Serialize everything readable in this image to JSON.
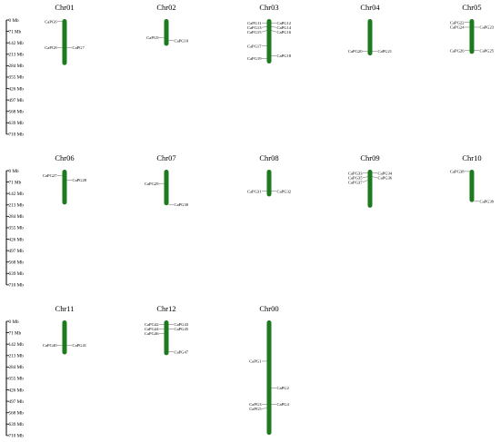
{
  "scale": {
    "unit": "Mb",
    "ticks": [
      0,
      71,
      142,
      213,
      284,
      355,
      426,
      497,
      568,
      639,
      710
    ],
    "tick_labels": [
      "0 Mb",
      "71 Mb",
      "142 Mb",
      "213 Mb",
      "284 Mb",
      "355 Mb",
      "426 Mb",
      "497 Mb",
      "568 Mb",
      "639 Mb",
      "710 Mb"
    ]
  },
  "colors": {
    "chromosome": "#1e7a1e",
    "axis": "#000000",
    "leader": "#666666"
  },
  "chromosomes": [
    {
      "name": "Chr01",
      "length": 275,
      "genes": [
        {
          "name": "CaPG6",
          "pos": 10,
          "side": "left"
        },
        {
          "name": "CaPG7",
          "pos": 172,
          "side": "right"
        },
        {
          "name": "CaPG8",
          "pos": 172,
          "side": "left"
        }
      ]
    },
    {
      "name": "Chr02",
      "length": 155,
      "genes": [
        {
          "name": "CaPG9",
          "pos": 110,
          "side": "left"
        },
        {
          "name": "CaPG10",
          "pos": 128,
          "side": "right"
        }
      ]
    },
    {
      "name": "Chr03",
      "length": 265,
      "genes": [
        {
          "name": "CaPG11",
          "pos": 18,
          "side": "left"
        },
        {
          "name": "CaPG12",
          "pos": 18,
          "side": "right"
        },
        {
          "name": "CaPG13",
          "pos": 42,
          "side": "left"
        },
        {
          "name": "CaPG14",
          "pos": 42,
          "side": "right"
        },
        {
          "name": "CaPG15",
          "pos": 65,
          "side": "left"
        },
        {
          "name": "CaPG16",
          "pos": 65,
          "side": "right"
        },
        {
          "name": "CaPG17",
          "pos": 162,
          "side": "left"
        },
        {
          "name": "CaPG18",
          "pos": 222,
          "side": "right"
        },
        {
          "name": "CaPG19",
          "pos": 240,
          "side": "left"
        }
      ]
    },
    {
      "name": "Chr04",
      "length": 215,
      "genes": [
        {
          "name": "CaPG20",
          "pos": 195,
          "side": "left"
        },
        {
          "name": "CaPG21",
          "pos": 195,
          "side": "right"
        }
      ]
    },
    {
      "name": "Chr05",
      "length": 205,
      "genes": [
        {
          "name": "CaPG22",
          "pos": 15,
          "side": "left"
        },
        {
          "name": "CaPG23",
          "pos": 45,
          "side": "right"
        },
        {
          "name": "CaPG24",
          "pos": 45,
          "side": "left"
        },
        {
          "name": "CaPG25",
          "pos": 190,
          "side": "right"
        },
        {
          "name": "CaPG26",
          "pos": 190,
          "side": "left"
        }
      ]
    },
    {
      "name": "Chr06",
      "length": 205,
      "genes": [
        {
          "name": "CaPG27",
          "pos": 30,
          "side": "left"
        },
        {
          "name": "CaPG28",
          "pos": 58,
          "side": "right"
        }
      ]
    },
    {
      "name": "Chr07",
      "length": 210,
      "genes": [
        {
          "name": "CaPG29",
          "pos": 80,
          "side": "left"
        },
        {
          "name": "CaPG30",
          "pos": 210,
          "side": "right"
        }
      ]
    },
    {
      "name": "Chr08",
      "length": 155,
      "genes": [
        {
          "name": "CaPG31",
          "pos": 128,
          "side": "left"
        },
        {
          "name": "CaPG32",
          "pos": 128,
          "side": "right"
        }
      ]
    },
    {
      "name": "Chr09",
      "length": 225,
      "genes": [
        {
          "name": "CaPG33",
          "pos": 15,
          "side": "left"
        },
        {
          "name": "CaPG34",
          "pos": 15,
          "side": "right"
        },
        {
          "name": "CaPG35",
          "pos": 38,
          "side": "left"
        },
        {
          "name": "CaPG36",
          "pos": 38,
          "side": "right"
        },
        {
          "name": "CaPG37",
          "pos": 60,
          "side": "left"
        }
      ]
    },
    {
      "name": "Chr10",
      "length": 190,
      "genes": [
        {
          "name": "CaPG38",
          "pos": 5,
          "side": "left"
        },
        {
          "name": "CaPG39",
          "pos": 190,
          "side": "right"
        }
      ]
    },
    {
      "name": "Chr11",
      "length": 200,
      "genes": [
        {
          "name": "CaPG40",
          "pos": 150,
          "side": "left"
        },
        {
          "name": "CaPG41",
          "pos": 150,
          "side": "right"
        }
      ]
    },
    {
      "name": "Chr12",
      "length": 205,
      "genes": [
        {
          "name": "CaPG42",
          "pos": 20,
          "side": "left"
        },
        {
          "name": "CaPG43",
          "pos": 20,
          "side": "right"
        },
        {
          "name": "CaPG44",
          "pos": 48,
          "side": "left"
        },
        {
          "name": "CaPG45",
          "pos": 48,
          "side": "right"
        },
        {
          "name": "CaPG46",
          "pos": 75,
          "side": "left"
        },
        {
          "name": "CaPG47",
          "pos": 190,
          "side": "right"
        }
      ]
    },
    {
      "name": "Chr00",
      "length": 700,
      "genes": [
        {
          "name": "CaPG1",
          "pos": 248,
          "side": "left"
        },
        {
          "name": "CaPG2",
          "pos": 415,
          "side": "right"
        },
        {
          "name": "CaPG3",
          "pos": 515,
          "side": "left"
        },
        {
          "name": "CaPG4",
          "pos": 515,
          "side": "right"
        },
        {
          "name": "CaPG5",
          "pos": 540,
          "side": "left"
        }
      ]
    }
  ]
}
